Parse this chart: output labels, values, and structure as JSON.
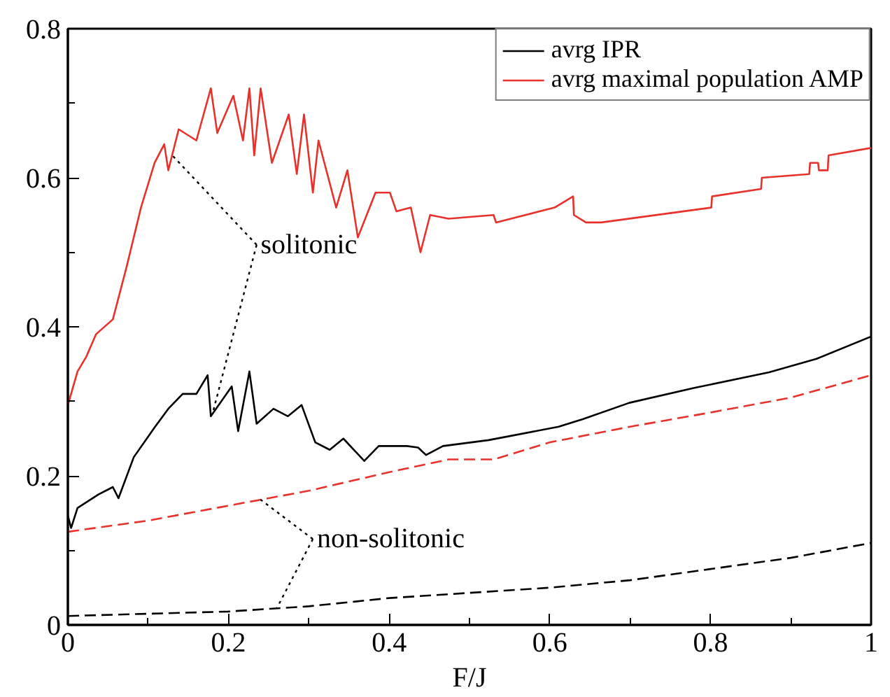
{
  "chart_data": {
    "type": "line",
    "xlabel": "F/J",
    "xlim": [
      0,
      1
    ],
    "ylim": [
      0,
      0.8
    ],
    "xticks": [
      0,
      0.2,
      0.4,
      0.6,
      0.8,
      1
    ],
    "yticks": [
      0,
      0.2,
      0.4,
      0.6,
      0.8
    ],
    "grid": false,
    "legend": "top right",
    "series": [
      {
        "name": "avrg IPR",
        "color": "#000000",
        "line_style": "solid",
        "x": [
          0,
          0.004,
          0.012,
          0.038,
          0.056,
          0.063,
          0.082,
          0.108,
          0.125,
          0.143,
          0.16,
          0.174,
          0.178,
          0.204,
          0.212,
          0.226,
          0.235,
          0.256,
          0.274,
          0.291,
          0.308,
          0.326,
          0.343,
          0.369,
          0.387,
          0.422,
          0.436,
          0.446,
          0.467,
          0.524,
          0.611,
          0.641,
          0.699,
          0.78,
          0.873,
          0.932,
          1.0
        ],
        "values": [
          0.147,
          0.13,
          0.157,
          0.175,
          0.185,
          0.17,
          0.225,
          0.265,
          0.29,
          0.31,
          0.31,
          0.335,
          0.28,
          0.32,
          0.26,
          0.34,
          0.27,
          0.29,
          0.28,
          0.295,
          0.245,
          0.235,
          0.25,
          0.22,
          0.24,
          0.24,
          0.238,
          0.228,
          0.24,
          0.248,
          0.266,
          0.276,
          0.298,
          0.318,
          0.339,
          0.357,
          0.387
        ]
      },
      {
        "name": "avrg maximal population AMP",
        "color": "#e8312a",
        "line_style": "solid",
        "x": [
          0,
          0.012,
          0.023,
          0.035,
          0.056,
          0.073,
          0.091,
          0.108,
          0.12,
          0.125,
          0.138,
          0.16,
          0.178,
          0.186,
          0.206,
          0.218,
          0.226,
          0.232,
          0.24,
          0.254,
          0.275,
          0.285,
          0.294,
          0.305,
          0.312,
          0.334,
          0.348,
          0.361,
          0.383,
          0.401,
          0.409,
          0.427,
          0.439,
          0.451,
          0.474,
          0.53,
          0.533,
          0.606,
          0.629,
          0.63,
          0.645,
          0.664,
          0.801,
          0.802,
          0.863,
          0.864,
          0.923,
          0.924,
          0.934,
          0.935,
          0.946,
          0.947,
          1.0
        ],
        "values": [
          0.295,
          0.34,
          0.36,
          0.39,
          0.41,
          0.48,
          0.56,
          0.62,
          0.645,
          0.61,
          0.665,
          0.65,
          0.72,
          0.66,
          0.71,
          0.65,
          0.72,
          0.63,
          0.72,
          0.62,
          0.685,
          0.605,
          0.685,
          0.58,
          0.65,
          0.56,
          0.61,
          0.52,
          0.58,
          0.58,
          0.555,
          0.56,
          0.5,
          0.55,
          0.545,
          0.55,
          0.54,
          0.56,
          0.575,
          0.55,
          0.54,
          0.54,
          0.56,
          0.575,
          0.585,
          0.6,
          0.605,
          0.62,
          0.62,
          0.61,
          0.61,
          0.63,
          0.64
        ]
      },
      {
        "color": "#e8312a",
        "line_style": "dashed",
        "x": [
          0,
          0.1,
          0.2,
          0.3,
          0.4,
          0.474,
          0.53,
          0.6,
          0.7,
          0.8,
          0.9,
          1.0
        ],
        "values": [
          0.125,
          0.14,
          0.16,
          0.18,
          0.205,
          0.222,
          0.222,
          0.245,
          0.266,
          0.285,
          0.305,
          0.335
        ]
      },
      {
        "color": "#000000",
        "line_style": "dashed",
        "x": [
          0,
          0.2,
          0.3,
          0.4,
          0.6,
          0.7,
          0.8,
          0.9,
          1.0
        ],
        "values": [
          0.012,
          0.018,
          0.025,
          0.036,
          0.05,
          0.06,
          0.075,
          0.09,
          0.11
        ]
      }
    ],
    "annotations": [
      {
        "text": "solitonic",
        "x": 0.13,
        "y": 0.63
      },
      {
        "text": "non-solitonic",
        "x": 0.24,
        "y": 0.168
      }
    ]
  }
}
